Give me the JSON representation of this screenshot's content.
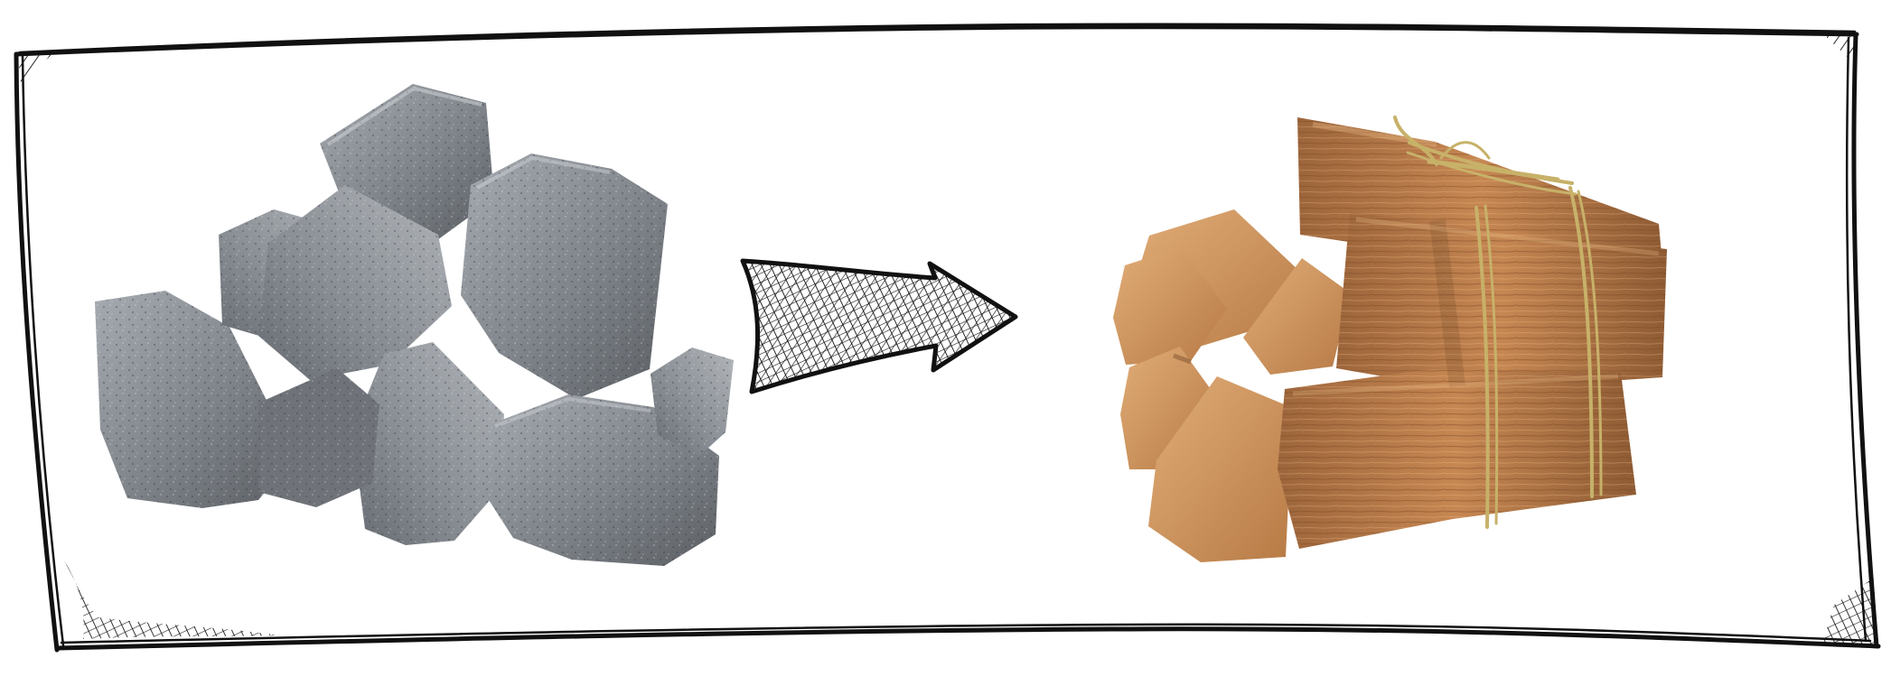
{
  "scene": {
    "left_image": "stones-pile",
    "connector": "arrow-right",
    "right_image": "firewood-bundle"
  },
  "colors": {
    "frame": "#111111",
    "stone_dark": "#5d6166",
    "stone_mid": "#7f8389",
    "stone_light": "#a2a7ad",
    "wood_dark": "#8a5b34",
    "wood_mid": "#b77a45",
    "wood_light": "#d9a26d",
    "twine": "#c7b169"
  }
}
